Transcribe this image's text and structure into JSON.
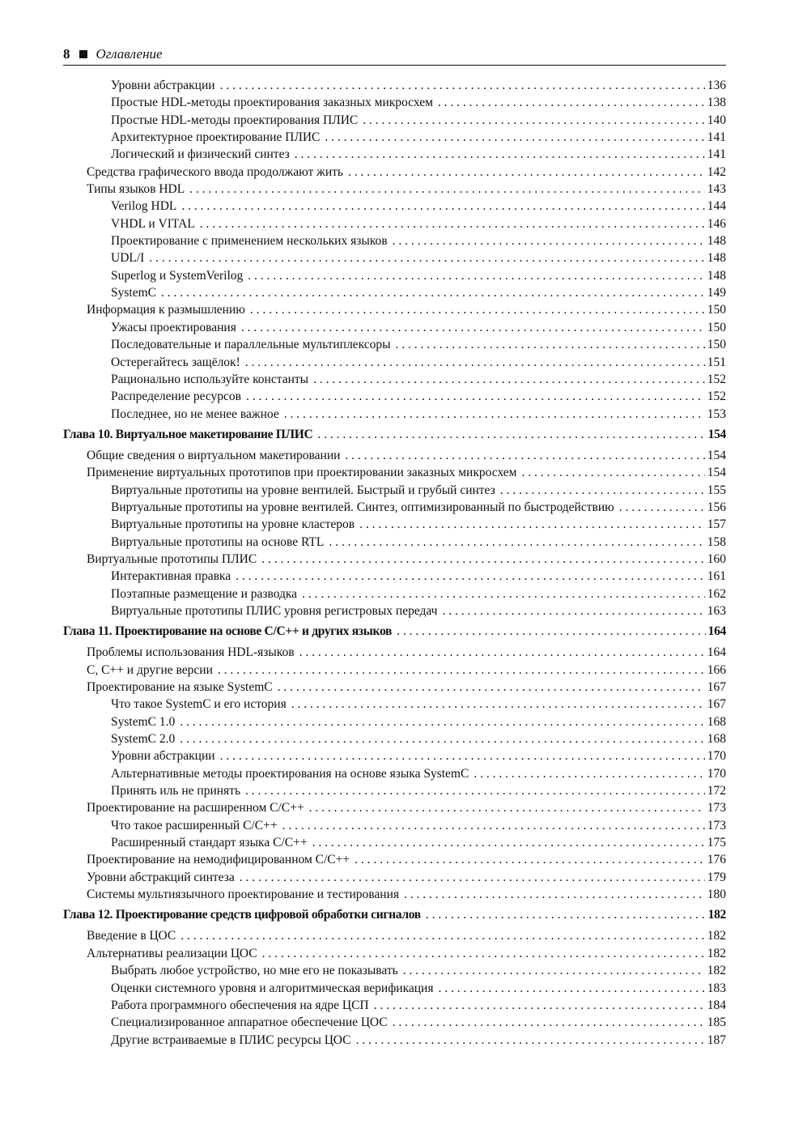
{
  "header": {
    "page_number": "8",
    "title": "Оглавление"
  },
  "toc": [
    {
      "level": 2,
      "title": "Уровни абстракции",
      "page": "136"
    },
    {
      "level": 2,
      "title": "Простые HDL-методы проектирования заказных микросхем",
      "page": "138"
    },
    {
      "level": 2,
      "title": "Простые HDL-методы проектирования ПЛИС",
      "page": "140"
    },
    {
      "level": 2,
      "title": "Архитектурное проектирование ПЛИС",
      "page": "141"
    },
    {
      "level": 2,
      "title": "Логический и физический синтез",
      "page": "141"
    },
    {
      "level": 1,
      "title": "Средства графического ввода продолжают жить",
      "page": "142"
    },
    {
      "level": 1,
      "title": "Типы языков HDL",
      "page": "143"
    },
    {
      "level": 2,
      "title": "Verilog HDL",
      "page": "144"
    },
    {
      "level": 2,
      "title": "VHDL и VITAL",
      "page": "146"
    },
    {
      "level": 2,
      "title": "Проектирование с применением нескольких языков",
      "page": "148"
    },
    {
      "level": 2,
      "title": "UDL/I",
      "page": "148"
    },
    {
      "level": 2,
      "title": "Superlog и SystemVerilog",
      "page": "148"
    },
    {
      "level": 2,
      "title": "SystemC",
      "page": "149"
    },
    {
      "level": 1,
      "title": "Информация к размышлению",
      "page": "150"
    },
    {
      "level": 2,
      "title": "Ужасы проектирования",
      "page": "150"
    },
    {
      "level": 2,
      "title": "Последовательные и параллельные мультиплексоры",
      "page": "150"
    },
    {
      "level": 2,
      "title": "Остерегайтесь защёлок!",
      "page": "151"
    },
    {
      "level": 2,
      "title": "Рационально используйте константы",
      "page": "152"
    },
    {
      "level": 2,
      "title": "Распределение ресурсов",
      "page": "152"
    },
    {
      "level": 2,
      "title": "Последнее, но не менее важное",
      "page": "153"
    },
    {
      "level": 0,
      "title": "Глава 10. Виртуальное макетирование ПЛИС",
      "page": "154"
    },
    {
      "level": 1,
      "title": "Общие сведения о виртуальном макетировании",
      "page": "154"
    },
    {
      "level": 1,
      "title": "Применение виртуальных прототипов при проектировании заказных микросхем",
      "page": "154"
    },
    {
      "level": 2,
      "title": "Виртуальные прототипы на уровне вентилей. Быстрый и грубый синтез",
      "page": "155"
    },
    {
      "level": 2,
      "title": "Виртуальные прототипы на уровне вентилей. Синтез, оптимизированный по быстродействию",
      "page": "156"
    },
    {
      "level": 2,
      "title": "Виртуальные прототипы на уровне кластеров",
      "page": "157"
    },
    {
      "level": 2,
      "title": "Виртуальные прототипы  на основе RTL",
      "page": "158"
    },
    {
      "level": 1,
      "title": "Виртуальные прототипы ПЛИС",
      "page": "160"
    },
    {
      "level": 2,
      "title": "Интерактивная правка",
      "page": "161"
    },
    {
      "level": 2,
      "title": "Поэтапные размещение и разводка",
      "page": "162"
    },
    {
      "level": 2,
      "title": "Виртуальные прототипы ПЛИС уровня регистровых передач",
      "page": "163"
    },
    {
      "level": 0,
      "title": "Глава 11. Проектирование на основе C/C++ и других языков",
      "page": "164"
    },
    {
      "level": 1,
      "title": "Проблемы использования HDL-языков",
      "page": "164"
    },
    {
      "level": 1,
      "title": "C, C++ и другие версии",
      "page": "166"
    },
    {
      "level": 1,
      "title": "Проектирование на языке SystemC",
      "page": "167"
    },
    {
      "level": 2,
      "title": "Что такое SystemC и его история",
      "page": "167"
    },
    {
      "level": 2,
      "title": "SystemC 1.0",
      "page": "168"
    },
    {
      "level": 2,
      "title": "SystemC 2.0",
      "page": "168"
    },
    {
      "level": 2,
      "title": "Уровни абстракции",
      "page": "170"
    },
    {
      "level": 2,
      "title": "Альтернативные методы проектирования на основе языка SystemC",
      "page": "170"
    },
    {
      "level": 2,
      "title": "Принять иль не принять",
      "page": "172"
    },
    {
      "level": 1,
      "title": "Проектирование на  расширенном C/C++",
      "page": "173"
    },
    {
      "level": 2,
      "title": "Что такое расширенный C/C++",
      "page": "173"
    },
    {
      "level": 2,
      "title": "Расширенный стандарт языка C/C++",
      "page": "175"
    },
    {
      "level": 1,
      "title": "Проектирование на немодифицированном C/C++",
      "page": "176"
    },
    {
      "level": 1,
      "title": "Уровни абстракций синтеза",
      "page": "179"
    },
    {
      "level": 1,
      "title": "Системы мультиязычного проектирование и тестирования",
      "page": "180"
    },
    {
      "level": 0,
      "title": "Глава 12. Проектирование средств цифровой обработки сигналов",
      "page": "182"
    },
    {
      "level": 1,
      "title": "Введение в ЦОС",
      "page": "182"
    },
    {
      "level": 1,
      "title": "Альтернативы реализации ЦОС",
      "page": "182"
    },
    {
      "level": 2,
      "title": "Выбрать любое устройство, но мне его не показывать",
      "page": "182"
    },
    {
      "level": 2,
      "title": "Оценки системного уровня и алгоритмическая верификация",
      "page": "183"
    },
    {
      "level": 2,
      "title": "Работа программного обеспечения на ядре ЦСП",
      "page": "184"
    },
    {
      "level": 2,
      "title": "Специализированное аппаратное обеспечение ЦОС",
      "page": "185"
    },
    {
      "level": 2,
      "title": "Другие встраиваемые в ПЛИС ресурсы ЦОС",
      "page": "187"
    }
  ]
}
